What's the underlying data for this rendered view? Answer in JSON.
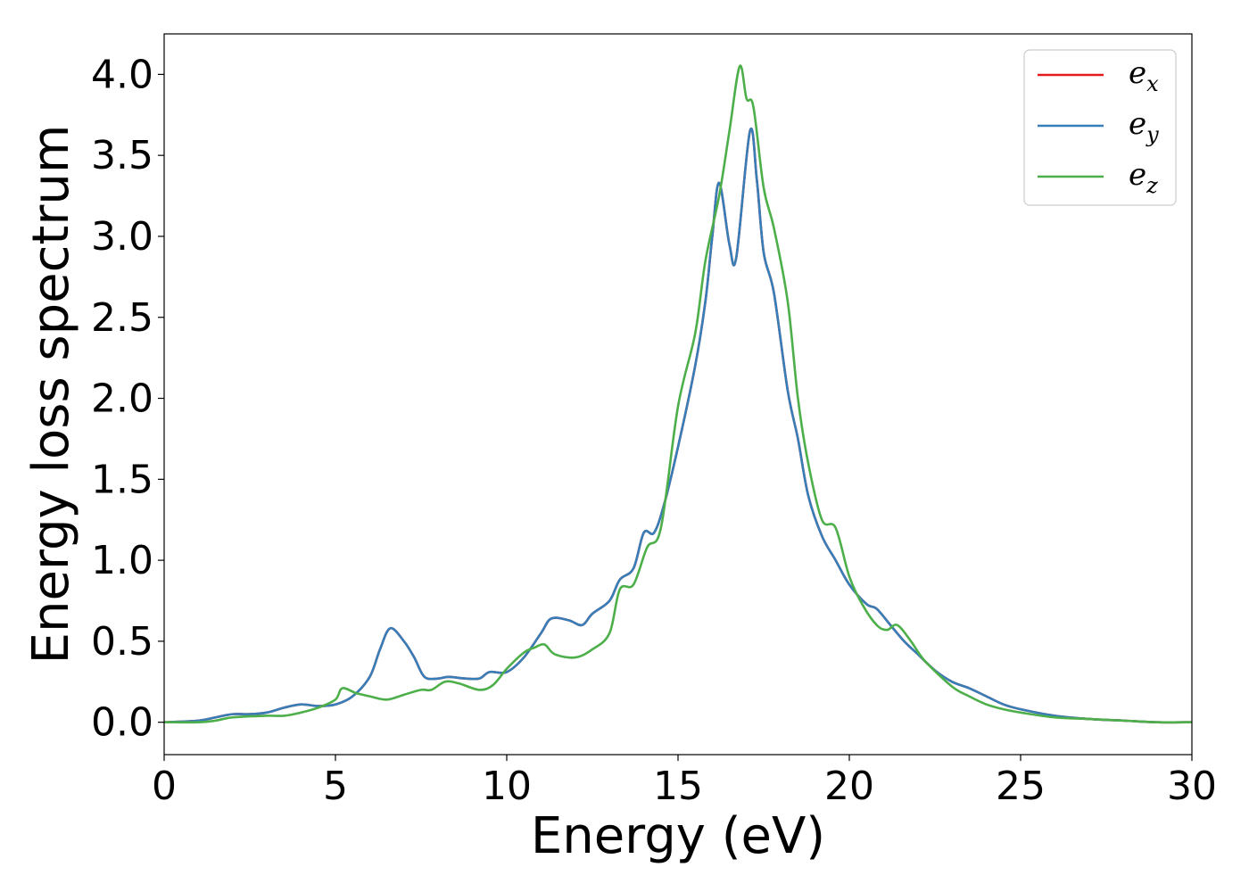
{
  "chart_data": {
    "type": "line",
    "title": "",
    "xlabel": "Energy (eV)",
    "ylabel": "Energy loss spectrum",
    "xlim": [
      0,
      30
    ],
    "ylim": [
      -0.2,
      4.25
    ],
    "xticks": [
      0,
      5,
      10,
      15,
      20,
      25,
      30
    ],
    "yticks": [
      0.0,
      0.5,
      1.0,
      1.5,
      2.0,
      2.5,
      3.0,
      3.5,
      4.0
    ],
    "xtick_labels": [
      "0",
      "5",
      "10",
      "15",
      "20",
      "25",
      "30"
    ],
    "ytick_labels": [
      "0.0",
      "0.5",
      "1.0",
      "1.5",
      "2.0",
      "2.5",
      "3.0",
      "3.5",
      "4.0"
    ],
    "grid": false,
    "legend_position": "top-right",
    "series": [
      {
        "name": "e_x",
        "label_base": "e",
        "label_sub": "x",
        "color": "#e41a1c",
        "points": [
          [
            0,
            0
          ],
          [
            1,
            0.01
          ],
          [
            1.5,
            0.03
          ],
          [
            2,
            0.05
          ],
          [
            2.5,
            0.05
          ],
          [
            3,
            0.06
          ],
          [
            3.5,
            0.09
          ],
          [
            4,
            0.11
          ],
          [
            4.5,
            0.1
          ],
          [
            5,
            0.11
          ],
          [
            5.5,
            0.16
          ],
          [
            6,
            0.28
          ],
          [
            6.3,
            0.45
          ],
          [
            6.6,
            0.58
          ],
          [
            7,
            0.5
          ],
          [
            7.3,
            0.4
          ],
          [
            7.6,
            0.28
          ],
          [
            8,
            0.27
          ],
          [
            8.3,
            0.28
          ],
          [
            8.8,
            0.27
          ],
          [
            9.2,
            0.27
          ],
          [
            9.5,
            0.31
          ],
          [
            10,
            0.31
          ],
          [
            10.5,
            0.4
          ],
          [
            11,
            0.55
          ],
          [
            11.3,
            0.64
          ],
          [
            11.8,
            0.63
          ],
          [
            12.2,
            0.6
          ],
          [
            12.5,
            0.67
          ],
          [
            13,
            0.75
          ],
          [
            13.3,
            0.88
          ],
          [
            13.7,
            0.95
          ],
          [
            14,
            1.17
          ],
          [
            14.3,
            1.17
          ],
          [
            14.6,
            1.35
          ],
          [
            15,
            1.7
          ],
          [
            15.5,
            2.2
          ],
          [
            15.8,
            2.6
          ],
          [
            16,
            3.0
          ],
          [
            16.2,
            3.33
          ],
          [
            16.5,
            2.95
          ],
          [
            16.7,
            2.87
          ],
          [
            17.1,
            3.65
          ],
          [
            17.3,
            3.35
          ],
          [
            17.5,
            2.9
          ],
          [
            17.8,
            2.65
          ],
          [
            18.2,
            2.05
          ],
          [
            18.5,
            1.75
          ],
          [
            18.8,
            1.4
          ],
          [
            19.2,
            1.15
          ],
          [
            19.6,
            1.0
          ],
          [
            20,
            0.85
          ],
          [
            20.5,
            0.73
          ],
          [
            20.8,
            0.7
          ],
          [
            21.2,
            0.6
          ],
          [
            21.6,
            0.5
          ],
          [
            22,
            0.42
          ],
          [
            22.5,
            0.32
          ],
          [
            23,
            0.25
          ],
          [
            23.5,
            0.21
          ],
          [
            24,
            0.16
          ],
          [
            24.5,
            0.11
          ],
          [
            25,
            0.08
          ],
          [
            26,
            0.04
          ],
          [
            27,
            0.02
          ],
          [
            28,
            0.01
          ],
          [
            29,
            0.0
          ],
          [
            30,
            0.0
          ]
        ]
      },
      {
        "name": "e_y",
        "label_base": "e",
        "label_sub": "y",
        "color": "#377eb8",
        "points": [
          [
            0,
            0
          ],
          [
            1,
            0.01
          ],
          [
            1.5,
            0.03
          ],
          [
            2,
            0.05
          ],
          [
            2.5,
            0.05
          ],
          [
            3,
            0.06
          ],
          [
            3.5,
            0.09
          ],
          [
            4,
            0.11
          ],
          [
            4.5,
            0.1
          ],
          [
            5,
            0.11
          ],
          [
            5.5,
            0.16
          ],
          [
            6,
            0.28
          ],
          [
            6.3,
            0.45
          ],
          [
            6.6,
            0.58
          ],
          [
            7,
            0.5
          ],
          [
            7.3,
            0.4
          ],
          [
            7.6,
            0.28
          ],
          [
            8,
            0.27
          ],
          [
            8.3,
            0.28
          ],
          [
            8.8,
            0.27
          ],
          [
            9.2,
            0.27
          ],
          [
            9.5,
            0.31
          ],
          [
            10,
            0.31
          ],
          [
            10.5,
            0.4
          ],
          [
            11,
            0.55
          ],
          [
            11.3,
            0.64
          ],
          [
            11.8,
            0.63
          ],
          [
            12.2,
            0.6
          ],
          [
            12.5,
            0.67
          ],
          [
            13,
            0.75
          ],
          [
            13.3,
            0.88
          ],
          [
            13.7,
            0.95
          ],
          [
            14,
            1.17
          ],
          [
            14.3,
            1.17
          ],
          [
            14.6,
            1.35
          ],
          [
            15,
            1.7
          ],
          [
            15.5,
            2.2
          ],
          [
            15.8,
            2.6
          ],
          [
            16,
            3.0
          ],
          [
            16.2,
            3.33
          ],
          [
            16.5,
            2.95
          ],
          [
            16.7,
            2.87
          ],
          [
            17.1,
            3.65
          ],
          [
            17.3,
            3.35
          ],
          [
            17.5,
            2.9
          ],
          [
            17.8,
            2.65
          ],
          [
            18.2,
            2.05
          ],
          [
            18.5,
            1.75
          ],
          [
            18.8,
            1.4
          ],
          [
            19.2,
            1.15
          ],
          [
            19.6,
            1.0
          ],
          [
            20,
            0.85
          ],
          [
            20.5,
            0.73
          ],
          [
            20.8,
            0.7
          ],
          [
            21.2,
            0.6
          ],
          [
            21.6,
            0.5
          ],
          [
            22,
            0.42
          ],
          [
            22.5,
            0.32
          ],
          [
            23,
            0.25
          ],
          [
            23.5,
            0.21
          ],
          [
            24,
            0.16
          ],
          [
            24.5,
            0.11
          ],
          [
            25,
            0.08
          ],
          [
            26,
            0.04
          ],
          [
            27,
            0.02
          ],
          [
            28,
            0.01
          ],
          [
            29,
            0.0
          ],
          [
            30,
            0.0
          ]
        ]
      },
      {
        "name": "e_z",
        "label_base": "e",
        "label_sub": "z",
        "color": "#4daf4a",
        "points": [
          [
            0,
            0
          ],
          [
            1,
            0.0
          ],
          [
            1.5,
            0.01
          ],
          [
            2,
            0.03
          ],
          [
            3,
            0.04
          ],
          [
            3.5,
            0.04
          ],
          [
            4,
            0.06
          ],
          [
            4.5,
            0.09
          ],
          [
            5,
            0.14
          ],
          [
            5.2,
            0.21
          ],
          [
            5.6,
            0.18
          ],
          [
            6,
            0.16
          ],
          [
            6.5,
            0.14
          ],
          [
            7,
            0.17
          ],
          [
            7.5,
            0.2
          ],
          [
            7.8,
            0.2
          ],
          [
            8.2,
            0.25
          ],
          [
            8.6,
            0.24
          ],
          [
            9.2,
            0.2
          ],
          [
            9.6,
            0.23
          ],
          [
            10,
            0.33
          ],
          [
            10.5,
            0.43
          ],
          [
            10.8,
            0.46
          ],
          [
            11.1,
            0.48
          ],
          [
            11.4,
            0.42
          ],
          [
            12,
            0.4
          ],
          [
            12.5,
            0.45
          ],
          [
            13,
            0.55
          ],
          [
            13.3,
            0.82
          ],
          [
            13.7,
            0.85
          ],
          [
            14.1,
            1.08
          ],
          [
            14.5,
            1.2
          ],
          [
            15,
            1.95
          ],
          [
            15.5,
            2.4
          ],
          [
            15.8,
            2.85
          ],
          [
            16.2,
            3.25
          ],
          [
            16.5,
            3.65
          ],
          [
            16.8,
            4.05
          ],
          [
            17,
            3.85
          ],
          [
            17.2,
            3.8
          ],
          [
            17.5,
            3.3
          ],
          [
            17.8,
            3.05
          ],
          [
            18.2,
            2.6
          ],
          [
            18.5,
            2.0
          ],
          [
            18.8,
            1.6
          ],
          [
            19.2,
            1.25
          ],
          [
            19.6,
            1.2
          ],
          [
            20,
            0.9
          ],
          [
            20.4,
            0.72
          ],
          [
            20.8,
            0.6
          ],
          [
            21.1,
            0.57
          ],
          [
            21.4,
            0.6
          ],
          [
            21.8,
            0.5
          ],
          [
            22.2,
            0.38
          ],
          [
            23,
            0.22
          ],
          [
            23.5,
            0.16
          ],
          [
            24,
            0.11
          ],
          [
            24.5,
            0.08
          ],
          [
            25,
            0.06
          ],
          [
            26,
            0.03
          ],
          [
            27,
            0.02
          ],
          [
            28,
            0.01
          ],
          [
            29,
            0.0
          ],
          [
            30,
            0.0
          ]
        ]
      }
    ]
  }
}
